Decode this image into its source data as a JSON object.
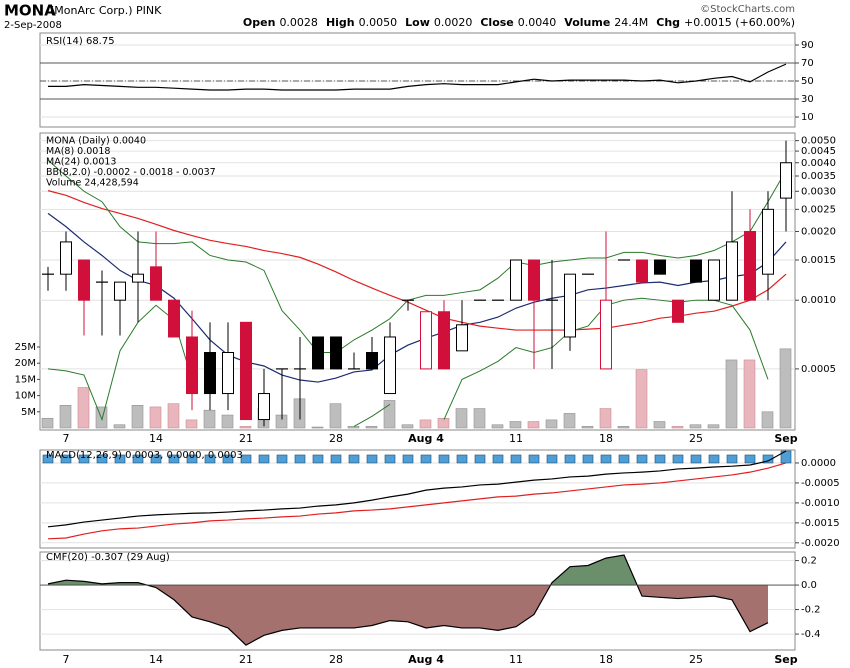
{
  "header": {
    "symbol": "MONA",
    "name": "(MonArc Corp.) PINK",
    "date": "2-Sep-2008",
    "credit": "©StockCharts.com",
    "quote": [
      {
        "label": "Open",
        "value": "0.0028"
      },
      {
        "label": "High",
        "value": "0.0050"
      },
      {
        "label": "Low",
        "value": "0.0020"
      },
      {
        "label": "Close",
        "value": "0.0040"
      },
      {
        "label": "Volume",
        "value": "24.4M"
      },
      {
        "label": "Chg",
        "value": "+0.0015 (+60.00%)"
      }
    ]
  },
  "chart_data": [
    {
      "type": "line",
      "title": "RSI(14) 68.75",
      "ylim": [
        0,
        100
      ],
      "yticks": [
        90,
        70,
        50,
        30,
        10
      ],
      "overbought": 70,
      "midline": 50,
      "oversold": 30,
      "grid": true,
      "series": [
        {
          "color": "#000000",
          "values": [
            44,
            44,
            46,
            45,
            44,
            43,
            43,
            42,
            41,
            40,
            40,
            41,
            41,
            40,
            40,
            40,
            40,
            41,
            41,
            41,
            44,
            46,
            47,
            46,
            46,
            46,
            49,
            52,
            50,
            51,
            51,
            51,
            51,
            50,
            51,
            48,
            50,
            53,
            55,
            49,
            60,
            68.75
          ]
        }
      ]
    },
    {
      "type": "candlestick",
      "name": "MONA (Daily) 0.0040",
      "color": "#000000",
      "down_color": "#d0103a",
      "categories": [
        null,
        "7",
        null,
        null,
        null,
        null,
        "14",
        null,
        null,
        null,
        null,
        "21",
        null,
        null,
        null,
        null,
        "28",
        null,
        null,
        null,
        null,
        "Aug 4",
        null,
        null,
        null,
        null,
        "11",
        null,
        null,
        null,
        null,
        "18",
        null,
        null,
        null,
        null,
        "25",
        null,
        null,
        null,
        null,
        "Sep"
      ],
      "open": [
        0.0013,
        0.0013,
        0.0015,
        0.0012,
        0.001,
        0.0012,
        0.0014,
        0.001,
        0.00069,
        0.00059,
        0.00039,
        0.0008,
        0.0003,
        0.0005,
        0.0005,
        0.00069,
        0.00069,
        0.0005,
        0.00059,
        0.00039,
        0.001,
        0.0005,
        0.00089,
        0.0006,
        0.001,
        0.001,
        0.001,
        0.0015,
        0.001,
        0.00069,
        0.0013,
        0.0005,
        0.0015,
        0.0015,
        0.0015,
        0.001,
        0.0015,
        0.001,
        0.001,
        0.002,
        0.0013,
        0.0028
      ],
      "high": [
        0.0014,
        0.002,
        0.0015,
        0.00135,
        0.0012,
        0.002,
        0.002,
        0.001,
        0.0009,
        0.0008,
        0.0008,
        0.0008,
        0.0005,
        0.0005,
        0.00069,
        0.00069,
        0.00069,
        0.00059,
        0.00069,
        0.0008,
        0.001,
        0.00089,
        0.001,
        0.001,
        0.001,
        0.001,
        0.0015,
        0.0015,
        0.0015,
        0.0013,
        0.0013,
        0.002,
        0.0015,
        0.0015,
        0.0015,
        0.001,
        0.0015,
        0.0015,
        0.003,
        0.0025,
        0.003,
        0.005
      ],
      "low": [
        0.0011,
        0.0011,
        0.0007,
        0.0007,
        0.0007,
        0.0008,
        0.001,
        0.00069,
        0.00033,
        0.00033,
        0.00033,
        0.0003,
        0.00028,
        0.0003,
        0.0003,
        0.0005,
        0.0005,
        0.0005,
        0.0005,
        0.00039,
        0.0009,
        0.0005,
        0.0005,
        0.0006,
        0.001,
        0.001,
        0.001,
        0.0005,
        0.0005,
        0.0006,
        0.0013,
        0.0005,
        0.0015,
        0.0012,
        0.0013,
        0.0008,
        0.0012,
        0.001,
        0.001,
        0.001,
        0.001,
        0.002
      ],
      "close": [
        0.0013,
        0.0018,
        0.001,
        0.0012,
        0.0012,
        0.0013,
        0.001,
        0.00069,
        0.00039,
        0.00039,
        0.00059,
        0.0003,
        0.00039,
        0.0005,
        0.0005,
        0.0005,
        0.0005,
        0.0005,
        0.0005,
        0.00069,
        0.001,
        0.00089,
        0.0005,
        0.00078,
        0.001,
        0.001,
        0.0015,
        0.001,
        0.001,
        0.0013,
        0.0013,
        0.001,
        0.0015,
        0.0012,
        0.0013,
        0.0008,
        0.0012,
        0.0015,
        0.0018,
        0.001,
        0.0025,
        0.004
      ],
      "log_scale": true,
      "ylim": [
        0.00027,
        0.0054
      ],
      "grid": true,
      "yticks": [
        {
          "value": 0.005,
          "label": "0.0050"
        },
        {
          "value": 0.0045,
          "label": "0.0045"
        },
        {
          "value": 0.004,
          "label": "0.0040"
        },
        {
          "value": 0.0035,
          "label": "0.0035"
        },
        {
          "value": 0.003,
          "label": "0.0030"
        },
        {
          "value": 0.0025,
          "label": "0.0025"
        },
        {
          "value": 0.002,
          "label": "0.0020"
        },
        {
          "value": 0.0015,
          "label": "0.0015"
        },
        {
          "value": 0.001,
          "label": "0.0010"
        },
        {
          "value": 0.0005,
          "label": "0.0005"
        }
      ],
      "series": [
        {
          "name": "MA(8) 0.0018",
          "color": "#1c2c6e",
          "values": [
            0.0024,
            0.0021,
            0.0018,
            0.00157,
            0.00135,
            0.00122,
            0.00116,
            0.00102,
            0.00083,
            0.00067,
            0.000575,
            0.000536,
            0.000515,
            0.00047,
            0.000447,
            0.000438,
            0.000456,
            0.000485,
            0.000495,
            0.000575,
            0.000636,
            0.000682,
            0.000725,
            0.000777,
            0.0008,
            0.000843,
            0.000923,
            0.00098,
            0.00102,
            0.00105,
            0.00111,
            0.00113,
            0.00116,
            0.00119,
            0.0012,
            0.00116,
            0.0012,
            0.00122,
            0.00127,
            0.0013,
            0.00147,
            0.0018
          ]
        },
        {
          "name": "MA(24) 0.0013",
          "color": "#e02020",
          "values": [
            0.00302,
            0.00288,
            0.00268,
            0.00252,
            0.0024,
            0.00228,
            0.00215,
            0.00202,
            0.00192,
            0.00183,
            0.00177,
            0.00172,
            0.00165,
            0.0016,
            0.00154,
            0.00144,
            0.00133,
            0.00122,
            0.00113,
            0.00105,
            0.00098,
            0.000904,
            0.000834,
            0.0008,
            0.00077,
            0.000754,
            0.00074,
            0.00074,
            0.00074,
            0.00074,
            0.000747,
            0.000754,
            0.000777,
            0.0008,
            0.000834,
            0.000851,
            0.000877,
            0.000895,
            0.000942,
            0.001,
            0.00111,
            0.0013
          ]
        },
        {
          "name": "BB(8,2.0) -0.0002 - 0.0018 - 0.0037",
          "color": "#2a7a2a",
          "upper": [
            0.0041,
            0.0035,
            0.003,
            0.0027,
            0.0021,
            0.0018,
            0.00177,
            0.00177,
            0.0018,
            0.00157,
            0.0015,
            0.00147,
            0.00135,
            0.0009,
            0.00074,
            0.00059,
            0.00059,
            0.00067,
            0.00074,
            0.00083,
            0.001,
            0.00105,
            0.00105,
            0.00108,
            0.00111,
            0.00125,
            0.00147,
            0.00142,
            0.00147,
            0.0015,
            0.00153,
            0.00153,
            0.00162,
            0.00162,
            0.00157,
            0.00153,
            0.00157,
            0.00165,
            0.0018,
            0.002,
            0.0027,
            0.0037
          ],
          "lower": [
            0.0005,
            0.00049,
            0.00047,
            0.0003,
            0.0006,
            0.0008,
            0.00095,
            0.00082,
            0.00045,
            null,
            null,
            null,
            null,
            null,
            null,
            null,
            null,
            0.00028,
            0.00031,
            0.00035,
            null,
            null,
            0.0003,
            0.00045,
            0.00049,
            0.00054,
            0.00062,
            0.00059,
            0.00062,
            0.00073,
            0.00077,
            0.00095,
            0.001,
            0.00102,
            0.001,
            0.00098,
            0.001,
            0.001,
            0.00095,
            0.00074,
            0.00045,
            null
          ]
        }
      ],
      "volume": {
        "name": "Volume 24,428,594",
        "color": "#bdbdbd",
        "down_color": "#e8b6bc",
        "ylim": [
          0,
          25
        ],
        "yticks": [
          {
            "value": 25,
            "label": "25M"
          },
          {
            "value": 20,
            "label": "20M"
          },
          {
            "value": 15,
            "label": "15M"
          },
          {
            "value": 10,
            "label": "10M"
          },
          {
            "value": 5,
            "label": "5M"
          }
        ],
        "values": [
          3,
          7,
          12.5,
          6.5,
          1,
          7,
          6.5,
          7.5,
          2.5,
          5.5,
          4,
          0.5,
          6,
          4,
          9,
          0.3,
          7.5,
          0.5,
          0.5,
          8.5,
          1,
          2.5,
          3,
          6,
          6,
          1,
          2,
          2,
          2.5,
          4.5,
          0.5,
          6,
          0.5,
          18,
          2,
          0.5,
          1,
          1,
          21,
          21,
          5,
          24.428594
        ]
      }
    },
    {
      "type": "line",
      "title": "MACD(12,26,9) 0.0003, 0.0000, 0.0003",
      "ylim": [
        -0.00213,
        0.000325
      ],
      "grid": true,
      "yticks": [
        {
          "value": 0,
          "label": "0.0000"
        },
        {
          "value": -0.0005,
          "label": "-0.0005"
        },
        {
          "value": -0.001,
          "label": "-0.0010"
        },
        {
          "value": -0.0015,
          "label": "-0.0015"
        },
        {
          "value": -0.002,
          "label": "-0.0020"
        }
      ],
      "series": [
        {
          "type": "bar",
          "color": "#4f9fd6",
          "values": [
            0.0002,
            0.0002,
            0.0002,
            0.0002,
            0.0002,
            0.0002,
            0.0002,
            0.0002,
            0.0002,
            0.0002,
            0.0002,
            0.0002,
            0.0002,
            0.0002,
            0.0002,
            0.0002,
            0.0002,
            0.0002,
            0.0002,
            0.0002,
            0.0002,
            0.0002,
            0.0002,
            0.0002,
            0.0002,
            0.0002,
            0.0002,
            0.0002,
            0.0002,
            0.0002,
            0.0002,
            0.0002,
            0.0002,
            0.0002,
            0.0002,
            0.0002,
            0.0002,
            0.0002,
            0.0002,
            0.0002,
            0.0002,
            0.0003
          ]
        },
        {
          "color": "#000000",
          "values": [
            -0.0016,
            -0.00155,
            -0.00148,
            -0.00143,
            -0.00138,
            -0.00133,
            -0.0013,
            -0.00128,
            -0.00126,
            -0.00125,
            -0.00123,
            -0.0012,
            -0.00118,
            -0.00115,
            -0.00113,
            -0.00108,
            -0.00105,
            -0.001,
            -0.00093,
            -0.00085,
            -0.00078,
            -0.00068,
            -0.00063,
            -0.0006,
            -0.00055,
            -0.00053,
            -0.00048,
            -0.00043,
            -0.0004,
            -0.00035,
            -0.00033,
            -0.00028,
            -0.00025,
            -0.00023,
            -0.0002,
            -0.00015,
            -0.00013,
            -0.0001,
            -8e-05,
            -5e-05,
            5e-05,
            0.0003
          ]
        },
        {
          "color": "#e02020",
          "values": [
            -0.0019,
            -0.00188,
            -0.00178,
            -0.0017,
            -0.00165,
            -0.00163,
            -0.00158,
            -0.00153,
            -0.0015,
            -0.00145,
            -0.00143,
            -0.0014,
            -0.00138,
            -0.00135,
            -0.00133,
            -0.00128,
            -0.00125,
            -0.0012,
            -0.00118,
            -0.00115,
            -0.0011,
            -0.00105,
            -0.001,
            -0.00095,
            -0.0009,
            -0.00085,
            -0.00083,
            -0.00078,
            -0.00075,
            -0.0007,
            -0.00065,
            -0.0006,
            -0.00055,
            -0.00053,
            -0.0005,
            -0.00045,
            -0.0004,
            -0.00035,
            -0.0003,
            -0.00023,
            -0.00013,
            0
          ]
        }
      ]
    },
    {
      "type": "area",
      "title": "CMF(20) -0.307 (29 Aug)",
      "positive_color": "#6b8f6b",
      "negative_color": "#a5716e",
      "ylim": [
        -0.53,
        0.27
      ],
      "grid": true,
      "yticks": [
        0.2,
        {
          "value": 0,
          "label": "0.0"
        },
        -0.2,
        -0.4
      ],
      "series": [
        {
          "color": "#000000",
          "values": [
            0.01,
            0.04,
            0.03,
            0.01,
            0.02,
            0.02,
            -0.02,
            -0.12,
            -0.26,
            -0.3,
            -0.35,
            -0.49,
            -0.41,
            -0.37,
            -0.35,
            -0.35,
            -0.35,
            -0.35,
            -0.33,
            -0.29,
            -0.3,
            -0.35,
            -0.33,
            -0.35,
            -0.35,
            -0.37,
            -0.34,
            -0.24,
            0.02,
            0.15,
            0.16,
            0.22,
            0.245,
            -0.09,
            -0.1,
            -0.11,
            -0.1,
            -0.09,
            -0.12,
            -0.38,
            -0.307,
            null
          ]
        }
      ]
    }
  ]
}
